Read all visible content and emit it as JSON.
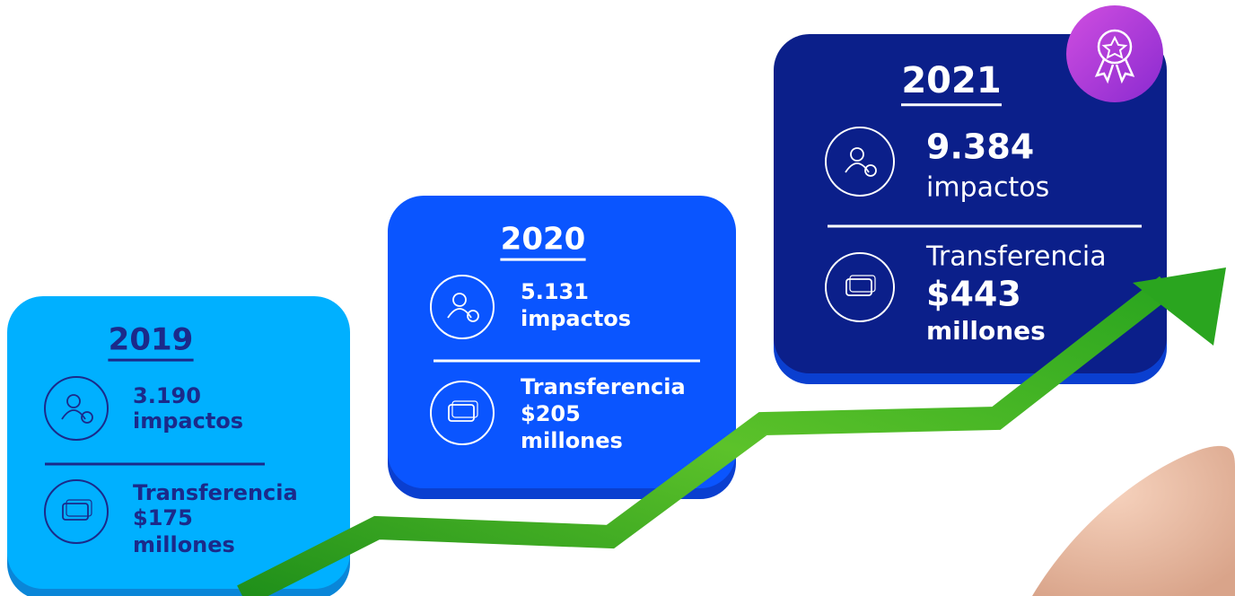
{
  "cards": [
    {
      "year": "2019",
      "impacts_value": "3.190",
      "impacts_label": "impactos",
      "transfer_label": "Transferencia",
      "transfer_amount": "$175",
      "transfer_unit": "millones"
    },
    {
      "year": "2020",
      "impacts_value": "5.131",
      "impacts_label": "impactos",
      "transfer_label": "Transferencia",
      "transfer_amount": "$205",
      "transfer_unit": "millones"
    },
    {
      "year": "2021",
      "impacts_value": "9.384",
      "impacts_label": "impactos",
      "transfer_label": "Transferencia",
      "transfer_amount": "$443",
      "transfer_unit": "millones"
    }
  ]
}
